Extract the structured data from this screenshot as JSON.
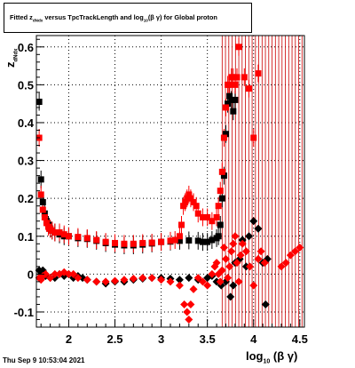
{
  "title": {
    "prefix": "Fitted  z",
    "sub1": "dNdx",
    "middle": "  versus  TpcTrackLength and log",
    "sub2": "10",
    "suffix": "(β  γ) for Global proton"
  },
  "timestamp": "Thu Sep  9 10:53:04 2021",
  "xlabel": {
    "main": "log",
    "sub": "10",
    "suffix": " (β γ)"
  },
  "ylabel": {
    "main": "z",
    "sub": "dNdx"
  },
  "colors": {
    "series_black": "#000000",
    "series_red": "#ff0000",
    "error_red": "#cc0000"
  },
  "chart_data": {
    "type": "scatter",
    "title": "Fitted z_dNdx versus TpcTrackLength and log10(β γ) for Global proton",
    "xlabel": "log10(β γ)",
    "ylabel": "z_dNdx",
    "xlim": [
      1.65,
      4.55
    ],
    "ylim": [
      -0.14,
      0.63
    ],
    "xticks": [
      2,
      2.5,
      3,
      3.5,
      4,
      4.5
    ],
    "yticks": [
      -0.1,
      0,
      0.1,
      0.2,
      0.3,
      0.4,
      0.5,
      0.6
    ],
    "xtick_labels": [
      "2",
      "2.5",
      "3",
      "3.5",
      "4",
      "4.5"
    ],
    "ytick_labels": [
      "-0.1",
      "0",
      "0.1",
      "0.2",
      "0.3",
      "0.4",
      "0.5",
      "0.6"
    ],
    "grid": true,
    "series": [
      {
        "marker": "square",
        "color": "#000000",
        "points": [
          [
            1.68,
            0.455
          ],
          [
            1.7,
            0.25
          ],
          [
            1.72,
            0.19
          ],
          [
            1.74,
            0.16
          ],
          [
            1.76,
            0.14
          ],
          [
            1.78,
            0.13
          ],
          [
            1.8,
            0.12
          ],
          [
            1.82,
            0.115
          ],
          [
            1.85,
            0.11
          ],
          [
            1.9,
            0.105
          ],
          [
            1.95,
            0.1
          ],
          [
            2.0,
            0.1
          ],
          [
            2.1,
            0.095
          ],
          [
            2.2,
            0.093
          ],
          [
            2.3,
            0.088
          ],
          [
            2.4,
            0.082
          ],
          [
            2.5,
            0.078
          ],
          [
            2.6,
            0.076
          ],
          [
            2.7,
            0.076
          ],
          [
            2.8,
            0.078
          ],
          [
            2.9,
            0.081
          ],
          [
            3.0,
            0.085
          ],
          [
            3.1,
            0.086
          ],
          [
            3.2,
            0.088
          ],
          [
            3.3,
            0.089
          ],
          [
            3.4,
            0.088
          ],
          [
            3.45,
            0.085
          ],
          [
            3.5,
            0.085
          ],
          [
            3.55,
            0.09
          ],
          [
            3.6,
            0.095
          ],
          [
            3.62,
            0.1
          ],
          [
            3.64,
            0.13
          ],
          [
            3.66,
            0.2
          ],
          [
            3.68,
            0.26
          ],
          [
            3.7,
            0.37
          ],
          [
            3.72,
            0.45
          ],
          [
            3.74,
            0.47
          ],
          [
            3.76,
            0.46
          ],
          [
            3.78,
            0.43
          ],
          [
            3.8,
            0.46
          ]
        ]
      },
      {
        "marker": "diamond",
        "color": "#000000",
        "points": [
          [
            1.68,
            0.01
          ],
          [
            1.7,
            0.0
          ],
          [
            1.72,
            0.01
          ],
          [
            1.75,
            -0.005
          ],
          [
            1.8,
            -0.01
          ],
          [
            1.85,
            -0.01
          ],
          [
            1.9,
            0.0
          ],
          [
            1.95,
            -0.005
          ],
          [
            2.0,
            0.0
          ],
          [
            2.05,
            -0.01
          ],
          [
            2.1,
            -0.005
          ],
          [
            2.15,
            -0.01
          ],
          [
            2.2,
            -0.015
          ],
          [
            2.3,
            -0.02
          ],
          [
            2.4,
            -0.025
          ],
          [
            2.5,
            -0.02
          ],
          [
            2.6,
            -0.02
          ],
          [
            2.7,
            -0.015
          ],
          [
            2.8,
            -0.012
          ],
          [
            2.9,
            -0.01
          ],
          [
            3.0,
            -0.01
          ],
          [
            3.1,
            -0.012
          ],
          [
            3.2,
            -0.015
          ],
          [
            3.3,
            -0.01
          ],
          [
            3.4,
            -0.015
          ],
          [
            3.5,
            -0.01
          ],
          [
            3.55,
            -0.005
          ],
          [
            3.6,
            -0.02
          ],
          [
            3.65,
            -0.03
          ],
          [
            3.7,
            -0.02
          ],
          [
            3.75,
            -0.06
          ],
          [
            3.78,
            -0.03
          ],
          [
            3.8,
            0.03
          ],
          [
            3.85,
            0.04
          ],
          [
            3.88,
            0.09
          ],
          [
            3.92,
            0.02
          ],
          [
            3.95,
            0.1
          ],
          [
            4.0,
            0.14
          ],
          [
            4.05,
            0.12
          ],
          [
            4.1,
            0.03
          ],
          [
            4.13,
            -0.08
          ],
          [
            4.15,
            0.04
          ]
        ]
      },
      {
        "marker": "square",
        "color": "#ff0000",
        "points": [
          [
            1.68,
            0.36
          ],
          [
            1.7,
            0.21
          ],
          [
            1.72,
            0.17
          ],
          [
            1.74,
            0.15
          ],
          [
            1.76,
            0.135
          ],
          [
            1.78,
            0.125
          ],
          [
            1.8,
            0.12
          ],
          [
            1.82,
            0.115
          ],
          [
            1.85,
            0.11
          ],
          [
            1.9,
            0.11
          ],
          [
            1.95,
            0.105
          ],
          [
            2.0,
            0.1
          ],
          [
            2.1,
            0.098
          ],
          [
            2.2,
            0.095
          ],
          [
            2.3,
            0.09
          ],
          [
            2.4,
            0.085
          ],
          [
            2.5,
            0.082
          ],
          [
            2.6,
            0.08
          ],
          [
            2.7,
            0.08
          ],
          [
            2.8,
            0.082
          ],
          [
            2.9,
            0.083
          ],
          [
            3.0,
            0.085
          ],
          [
            3.1,
            0.088
          ],
          [
            3.15,
            0.09
          ],
          [
            3.2,
            0.1
          ],
          [
            3.22,
            0.13
          ],
          [
            3.24,
            0.18
          ],
          [
            3.26,
            0.19
          ],
          [
            3.28,
            0.2
          ],
          [
            3.3,
            0.21
          ],
          [
            3.32,
            0.2
          ],
          [
            3.35,
            0.19
          ],
          [
            3.38,
            0.18
          ],
          [
            3.4,
            0.16
          ],
          [
            3.45,
            0.15
          ],
          [
            3.5,
            0.15
          ],
          [
            3.55,
            0.14
          ],
          [
            3.6,
            0.15
          ],
          [
            3.62,
            0.18
          ],
          [
            3.64,
            0.22
          ],
          [
            3.66,
            0.27
          ],
          [
            3.68,
            0.36
          ],
          [
            3.7,
            0.44
          ],
          [
            3.72,
            0.5
          ],
          [
            3.74,
            0.5
          ],
          [
            3.76,
            0.52
          ],
          [
            3.78,
            0.52
          ],
          [
            3.8,
            0.5
          ],
          [
            3.82,
            0.52
          ],
          [
            3.84,
            0.6
          ],
          [
            3.9,
            0.52
          ],
          [
            3.95,
            0.49
          ],
          [
            4.0,
            0.36
          ],
          [
            4.05,
            0.53
          ]
        ]
      },
      {
        "marker": "diamond",
        "color": "#ff0000",
        "points": [
          [
            1.68,
            -0.01
          ],
          [
            1.7,
            -0.015
          ],
          [
            1.72,
            -0.005
          ],
          [
            1.75,
            0.0
          ],
          [
            1.8,
            -0.01
          ],
          [
            1.85,
            0.0
          ],
          [
            1.9,
            0.0
          ],
          [
            1.95,
            0.005
          ],
          [
            2.0,
            0.0
          ],
          [
            2.05,
            0.0
          ],
          [
            2.1,
            -0.01
          ],
          [
            2.2,
            -0.015
          ],
          [
            2.3,
            -0.02
          ],
          [
            2.4,
            -0.02
          ],
          [
            2.5,
            -0.018
          ],
          [
            2.6,
            -0.015
          ],
          [
            2.7,
            -0.012
          ],
          [
            2.8,
            -0.01
          ],
          [
            2.9,
            -0.01
          ],
          [
            3.0,
            -0.015
          ],
          [
            3.1,
            -0.02
          ],
          [
            3.2,
            -0.03
          ],
          [
            3.25,
            -0.08
          ],
          [
            3.28,
            -0.1
          ],
          [
            3.3,
            -0.12
          ],
          [
            3.32,
            -0.08
          ],
          [
            3.35,
            -0.04
          ],
          [
            3.4,
            -0.01
          ],
          [
            3.45,
            -0.02
          ],
          [
            3.5,
            -0.03
          ],
          [
            3.55,
            0.0
          ],
          [
            3.58,
            0.02
          ],
          [
            3.6,
            0.03
          ],
          [
            3.62,
            0.0
          ],
          [
            3.64,
            -0.02
          ],
          [
            3.66,
            0.01
          ],
          [
            3.68,
            0.07
          ],
          [
            3.7,
            0.04
          ],
          [
            3.72,
            -0.01
          ],
          [
            3.74,
            0.02
          ],
          [
            3.76,
            0.06
          ],
          [
            3.78,
            0.08
          ],
          [
            3.8,
            0.1
          ],
          [
            3.82,
            0.03
          ],
          [
            3.84,
            -0.02
          ],
          [
            3.86,
            0.05
          ],
          [
            3.88,
            0.08
          ],
          [
            3.92,
            0.06
          ],
          [
            3.96,
            0.02
          ],
          [
            4.0,
            -0.03
          ],
          [
            4.05,
            0.04
          ],
          [
            4.08,
            0.06
          ],
          [
            4.12,
            0.03
          ],
          [
            4.3,
            0.02
          ],
          [
            4.35,
            0.03
          ],
          [
            4.4,
            0.05
          ],
          [
            4.45,
            0.06
          ],
          [
            4.5,
            0.07
          ]
        ]
      }
    ]
  }
}
